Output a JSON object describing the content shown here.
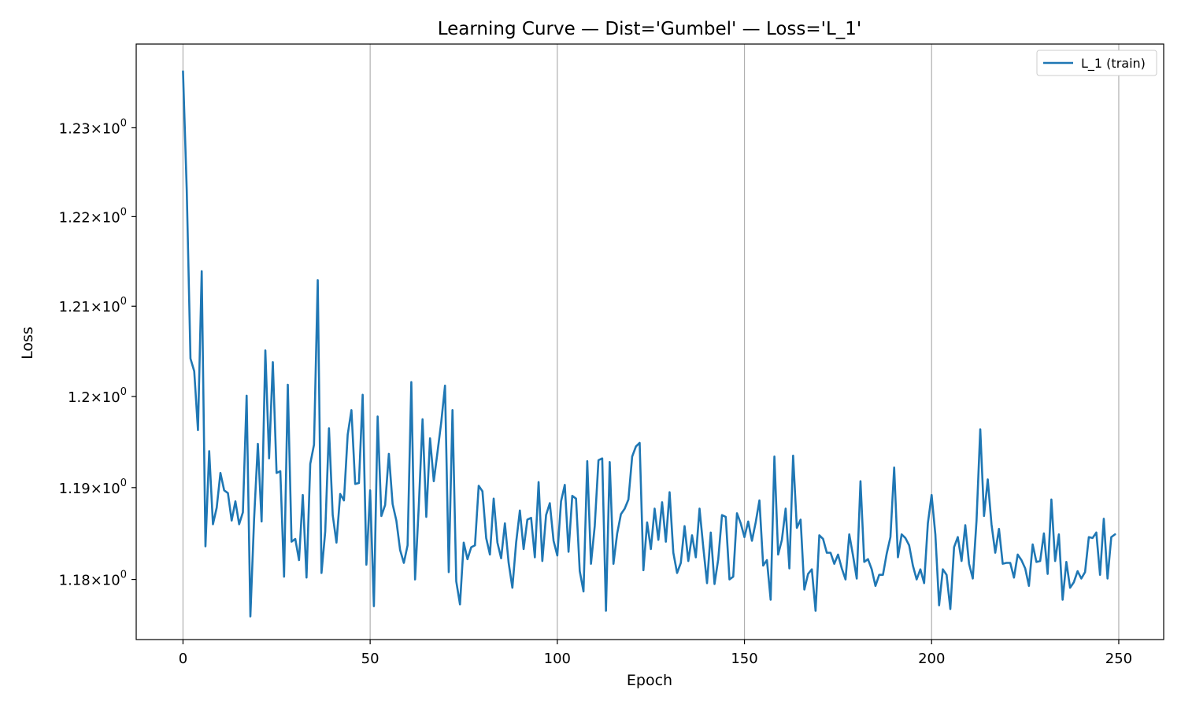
{
  "chart_data": {
    "type": "line",
    "title": "Learning Curve — Dist='Gumbel' — Loss='L_1'",
    "xlabel": "Epoch",
    "ylabel": "Loss",
    "xlim": [
      -12.5,
      262
    ],
    "ylim": [
      1.1735,
      1.2395
    ],
    "yscale": "log",
    "grid": "vertical",
    "legend_position": "top-right",
    "line_color": "#1f77b4",
    "grid_color": "#b0b0b0",
    "x_ticks": [
      0,
      50,
      100,
      150,
      200,
      250
    ],
    "y_ticks": [
      {
        "value": 1.18,
        "mantissa": "1.18"
      },
      {
        "value": 1.19,
        "mantissa": "1.19"
      },
      {
        "value": 1.2,
        "mantissa": "1.2"
      },
      {
        "value": 1.21,
        "mantissa": "1.21"
      },
      {
        "value": 1.22,
        "mantissa": "1.22"
      },
      {
        "value": 1.23,
        "mantissa": "1.23"
      }
    ],
    "y_tick_base": "10",
    "y_tick_exponent": "0",
    "series": [
      {
        "name": "L_1 (train)",
        "x_start": 0,
        "x_step": 1,
        "values": [
          1.2364,
          1.223,
          1.2042,
          1.2028,
          1.1963,
          1.2139,
          1.1836,
          1.194,
          1.186,
          1.1878,
          1.1916,
          1.1897,
          1.1894,
          1.1864,
          1.1885,
          1.186,
          1.1873,
          1.2001,
          1.176,
          1.1866,
          1.1948,
          1.1863,
          1.2051,
          1.1932,
          1.2038,
          1.1916,
          1.1918,
          1.1803,
          1.2013,
          1.1841,
          1.1844,
          1.1821,
          1.1892,
          1.1802,
          1.1926,
          1.1947,
          1.2129,
          1.1807,
          1.1852,
          1.1965,
          1.187,
          1.184,
          1.1893,
          1.1886,
          1.1958,
          1.1985,
          1.1904,
          1.1905,
          1.2002,
          1.1816,
          1.1897,
          1.1771,
          1.1978,
          1.1869,
          1.1881,
          1.1937,
          1.1882,
          1.1864,
          1.1832,
          1.1818,
          1.1837,
          1.2016,
          1.18,
          1.188,
          1.1975,
          1.1868,
          1.1954,
          1.1907,
          1.1939,
          1.1972,
          1.2012,
          1.1808,
          1.1985,
          1.1798,
          1.1773,
          1.184,
          1.1822,
          1.1835,
          1.1837,
          1.1902,
          1.1896,
          1.1845,
          1.1827,
          1.1888,
          1.184,
          1.1823,
          1.1861,
          1.1818,
          1.1791,
          1.184,
          1.1875,
          1.1833,
          1.1865,
          1.1867,
          1.1824,
          1.1906,
          1.182,
          1.187,
          1.1883,
          1.1842,
          1.1826,
          1.1885,
          1.1903,
          1.183,
          1.1891,
          1.1888,
          1.1809,
          1.1787,
          1.1929,
          1.1817,
          1.1858,
          1.193,
          1.1932,
          1.1766,
          1.1928,
          1.1817,
          1.185,
          1.1871,
          1.1877,
          1.1887,
          1.1934,
          1.1945,
          1.1949,
          1.181,
          1.1862,
          1.1833,
          1.1877,
          1.1843,
          1.1884,
          1.1841,
          1.1895,
          1.1829,
          1.1807,
          1.1818,
          1.1858,
          1.182,
          1.1848,
          1.1824,
          1.1877,
          1.1835,
          1.1796,
          1.1851,
          1.1795,
          1.1822,
          1.187,
          1.1868,
          1.18,
          1.1803,
          1.1872,
          1.1861,
          1.1846,
          1.1863,
          1.1842,
          1.1862,
          1.1886,
          1.1815,
          1.1821,
          1.1778,
          1.1934,
          1.1827,
          1.1843,
          1.1877,
          1.1812,
          1.1935,
          1.1856,
          1.1865,
          1.1789,
          1.1806,
          1.1811,
          1.1766,
          1.1848,
          1.1844,
          1.1829,
          1.1829,
          1.1817,
          1.1827,
          1.1812,
          1.18,
          1.1849,
          1.1826,
          1.1801,
          1.1907,
          1.1819,
          1.1822,
          1.1811,
          1.1793,
          1.1805,
          1.1805,
          1.1828,
          1.1846,
          1.1922,
          1.1824,
          1.1849,
          1.1845,
          1.1837,
          1.1815,
          1.18,
          1.1811,
          1.1796,
          1.1861,
          1.1892,
          1.1849,
          1.1772,
          1.1811,
          1.1805,
          1.1768,
          1.1835,
          1.1846,
          1.182,
          1.1859,
          1.1817,
          1.1801,
          1.1864,
          1.1964,
          1.1869,
          1.1909,
          1.186,
          1.1829,
          1.1855,
          1.1817,
          1.1818,
          1.1818,
          1.1802,
          1.1827,
          1.1821,
          1.1812,
          1.1793,
          1.1838,
          1.1819,
          1.182,
          1.185,
          1.1806,
          1.1887,
          1.182,
          1.1849,
          1.1778,
          1.1819,
          1.1791,
          1.1797,
          1.1809,
          1.1801,
          1.1808,
          1.1846,
          1.1845,
          1.1851,
          1.1805,
          1.1866,
          1.1801,
          1.1846,
          1.1849
        ]
      }
    ]
  }
}
